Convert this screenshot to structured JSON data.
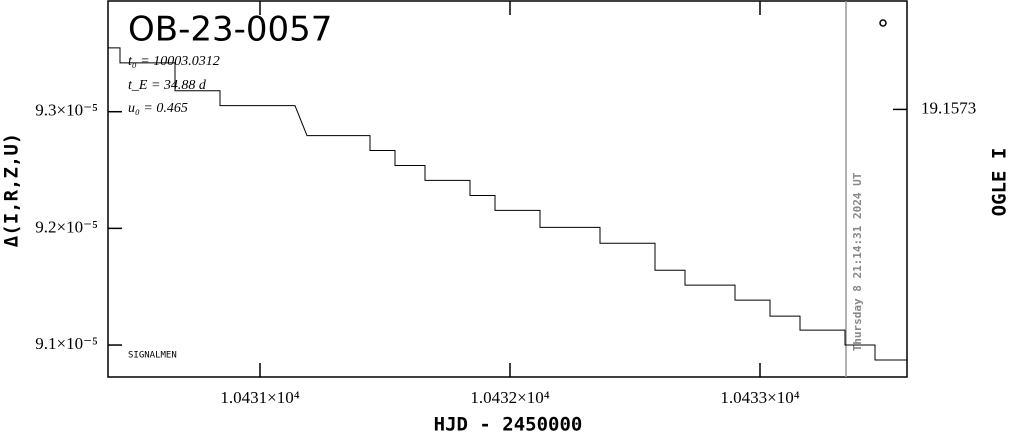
{
  "chart_data": {
    "type": "line",
    "title": "OB-23-0057",
    "annotations": [
      "t₀ = 10003.0312",
      "t_E = 34.88 d",
      "u₀ = 0.465"
    ],
    "footnote": "SIGNALMEN",
    "timestamp": "Thursday 8 21:14:31 2024 UT",
    "x_label": "HJD - 2450000",
    "y_label": "Δ(I,R,Z,U)",
    "y2_label": "OGLE I",
    "x": [
      10430.392,
      10430.44,
      10430.44,
      10430.66,
      10430.66,
      10430.84,
      10430.84,
      10431.14,
      10431.188,
      10431.44,
      10431.44,
      10431.54,
      10431.54,
      10431.66,
      10431.66,
      10431.84,
      10431.84,
      10431.94,
      10431.94,
      10432.12,
      10432.12,
      10432.36,
      10432.36,
      10432.58,
      10432.58,
      10432.7,
      10432.7,
      10432.9,
      10432.9,
      10433.04,
      10433.04,
      10433.16,
      10433.16,
      10433.34,
      10433.34,
      10433.46,
      10433.46,
      10433.588
    ],
    "series": [
      {
        "color": "#000000",
        "values": [
          9.3547e-05,
          9.3547e-05,
          9.3419e-05,
          9.3419e-05,
          9.318e-05,
          9.318e-05,
          9.3052e-05,
          9.3052e-05,
          9.2795e-05,
          9.2795e-05,
          9.2667e-05,
          9.2667e-05,
          9.2539e-05,
          9.2539e-05,
          9.2411e-05,
          9.2411e-05,
          9.2282e-05,
          9.2282e-05,
          9.2154e-05,
          9.2154e-05,
          9.2009e-05,
          9.2009e-05,
          9.1872e-05,
          9.1872e-05,
          9.1641e-05,
          9.1641e-05,
          9.1513e-05,
          9.1513e-05,
          9.1385e-05,
          9.1385e-05,
          9.1248e-05,
          9.1248e-05,
          9.1128e-05,
          9.1128e-05,
          9.1e-05,
          9.1e-05,
          9.0872e-05,
          9.0872e-05
        ]
      }
    ],
    "marker_x": 10433.344,
    "xlim": [
      10430.392,
      10433.588
    ],
    "xticks": [
      {
        "value": 10431,
        "label": "1.0431×10⁴"
      },
      {
        "value": 10432,
        "label": "1.0432×10⁴"
      },
      {
        "value": 10433,
        "label": "1.0433×10⁴"
      }
    ],
    "ylim": [
      9.0726e-05,
      9.3949e-05
    ],
    "yticks": [
      {
        "value": 9.1e-05,
        "label": "9.1×10⁻⁵"
      },
      {
        "value": 9.2e-05,
        "label": "9.2×10⁻⁵"
      },
      {
        "value": 9.3e-05,
        "label": "9.3×10⁻⁵"
      }
    ],
    "y2lim": [
      19.2,
      19.14
    ],
    "y2ticks": [
      19.1573
    ]
  }
}
